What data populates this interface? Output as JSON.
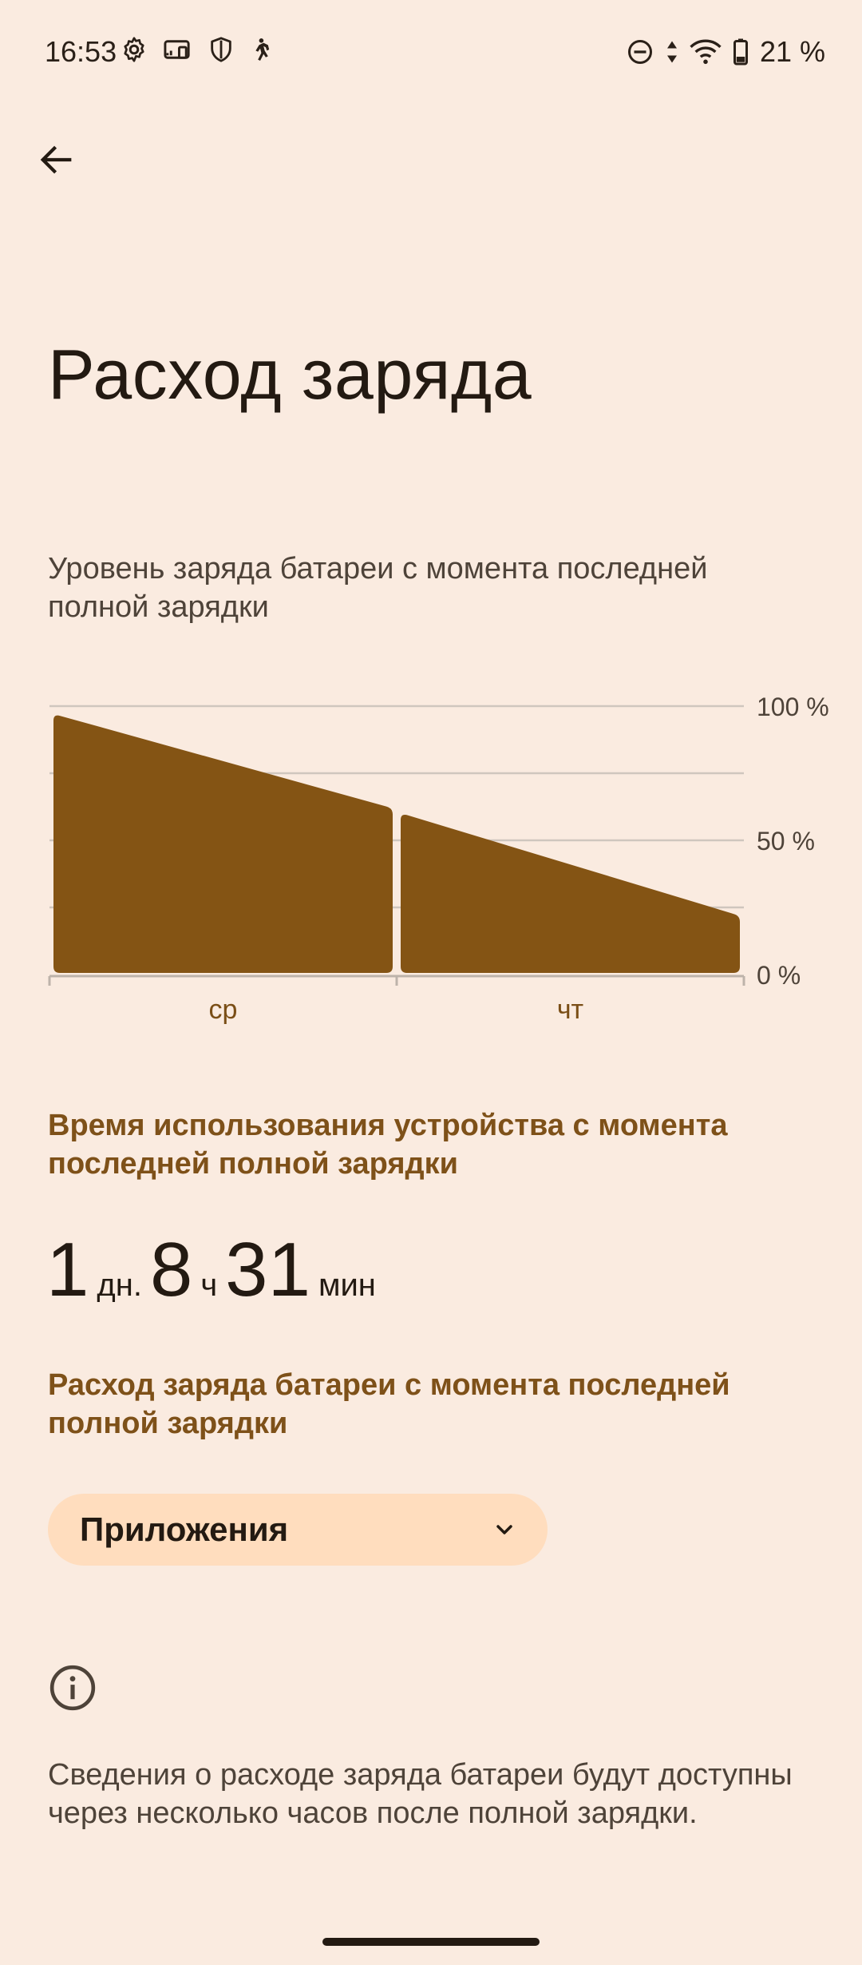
{
  "status_bar": {
    "time": "16:53",
    "battery_percent": "21 %",
    "icons_left": [
      "settings-icon",
      "cast-icon",
      "shield-icon",
      "walking-icon"
    ],
    "icons_right": [
      "do-not-disturb-icon",
      "data-arrows-icon",
      "wifi-icon",
      "battery-icon"
    ]
  },
  "header": {
    "back_icon": "arrow-left-icon",
    "title": "Расход заряда"
  },
  "chart_section": {
    "caption": "Уровень заряда батареи с момента последней полной зарядки"
  },
  "chart_data": {
    "type": "area",
    "categories": [
      "ср",
      "чт"
    ],
    "y_tick_labels": [
      "100 %",
      "50 %",
      "0 %"
    ],
    "ylim": [
      0,
      100
    ],
    "grid": true,
    "segments": [
      {
        "category": "ср",
        "start": 97,
        "end": 62
      },
      {
        "category": "чт",
        "start": 60,
        "end": 22
      }
    ],
    "color": "#845414"
  },
  "usage": {
    "title": "Время использования устройства с момента последней полной зарядки",
    "days": "1",
    "days_unit": "дн.",
    "hours": "8",
    "hours_unit": "ч",
    "minutes": "31",
    "minutes_unit": "мин"
  },
  "consumption": {
    "title": "Расход заряда батареи с момента последней полной зарядки",
    "dropdown_label": "Приложения",
    "dropdown_icon": "chevron-down-icon"
  },
  "info": {
    "icon": "info-icon",
    "text": "Сведения о расходе заряда батареи будут доступны через несколько часов после полной зарядки."
  }
}
